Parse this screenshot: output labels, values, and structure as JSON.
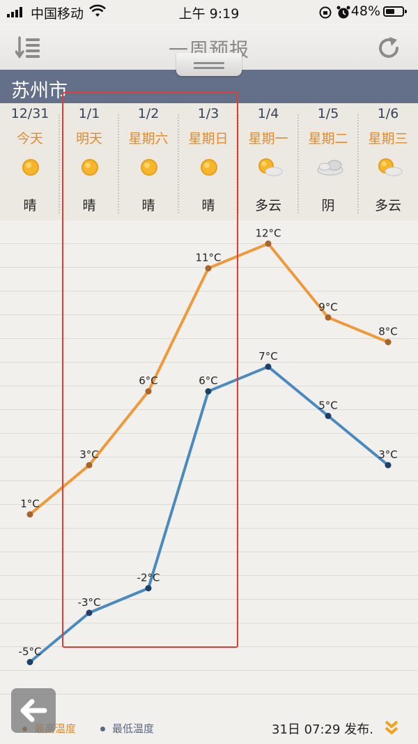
{
  "status_bar": {
    "carrier": "中国移动",
    "time": "上午 9:19",
    "battery_percent": "48%",
    "icons": [
      "signal-icon",
      "wifi-icon",
      "orientation-lock-icon",
      "alarm-icon",
      "battery-icon"
    ]
  },
  "header": {
    "title": "一周预报",
    "menu_icon": "list-menu-icon",
    "refresh_icon": "refresh-icon"
  },
  "city": "苏州市",
  "days": [
    {
      "date": "12/31",
      "name": "今天",
      "weather": "晴",
      "icon": "sunny-icon"
    },
    {
      "date": "1/1",
      "name": "明天",
      "weather": "晴",
      "icon": "sunny-icon"
    },
    {
      "date": "1/2",
      "name": "星期六",
      "weather": "晴",
      "icon": "sunny-icon"
    },
    {
      "date": "1/3",
      "name": "星期日",
      "weather": "晴",
      "icon": "sunny-icon"
    },
    {
      "date": "1/4",
      "name": "星期一",
      "weather": "多云",
      "icon": "partly-cloudy-icon"
    },
    {
      "date": "1/5",
      "name": "星期二",
      "weather": "阴",
      "icon": "overcast-icon"
    },
    {
      "date": "1/6",
      "name": "星期三",
      "weather": "多云",
      "icon": "partly-cloudy-icon"
    }
  ],
  "chart_data": {
    "type": "line",
    "categories": [
      "12/31",
      "1/1",
      "1/2",
      "1/3",
      "1/4",
      "1/5",
      "1/6"
    ],
    "unit": "°C",
    "series": [
      {
        "name": "最高温度",
        "values": [
          1,
          3,
          6,
          11,
          12,
          9,
          8
        ],
        "color": "#ef9a3a",
        "dot_color": "#a8642a"
      },
      {
        "name": "最低温度",
        "values": [
          -5,
          -3,
          -2,
          6,
          7,
          5,
          3
        ],
        "color": "#4a8abd",
        "dot_color": "#1e3f66"
      }
    ],
    "ylim": [
      -5,
      12
    ],
    "grid": true
  },
  "footer": {
    "legend_high": "最高温度",
    "legend_low": "最低温度",
    "publish_text": "31日 07:29 发布.",
    "more_icon": "chevron-double-down-icon"
  },
  "back_icon": "back-arrow-icon",
  "colors": {
    "accent_orange": "#e38b2a",
    "city_bar": "#64708a",
    "highlight_box": "#e33b2f"
  }
}
